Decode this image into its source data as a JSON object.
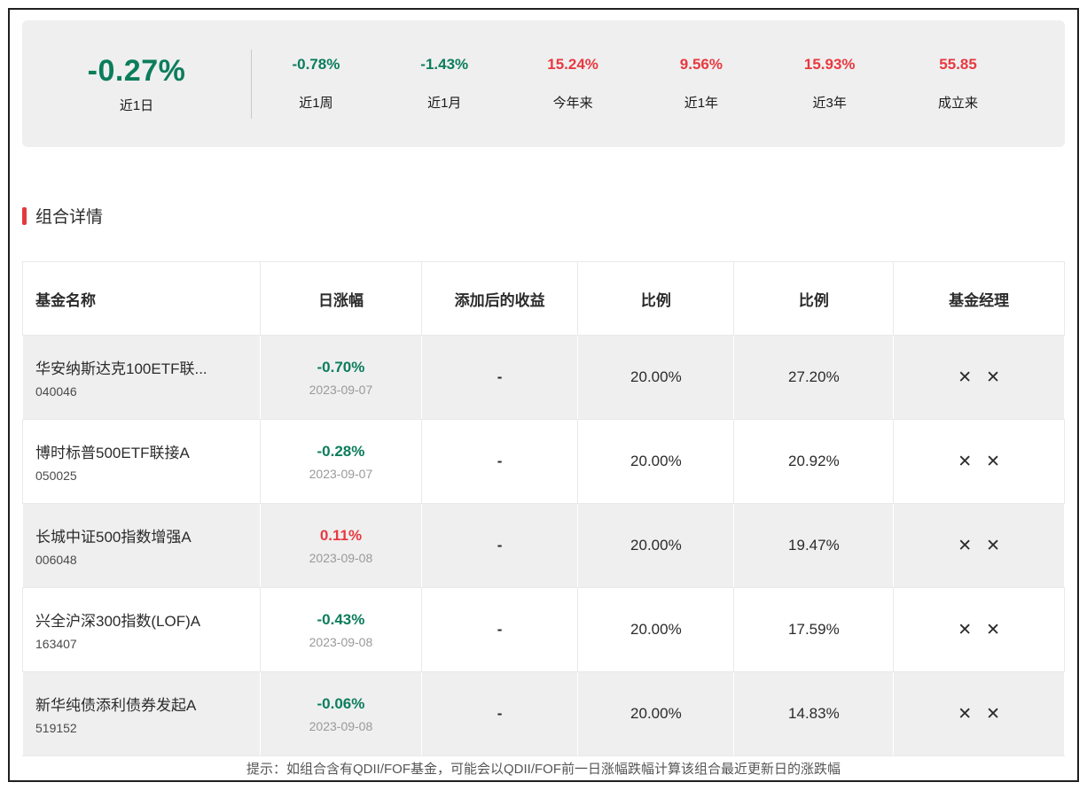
{
  "stats": {
    "main": {
      "value": "-0.27%",
      "label": "近1日"
    },
    "items": [
      {
        "value": "-0.78%",
        "label": "近1周"
      },
      {
        "value": "-1.43%",
        "label": "近1月"
      },
      {
        "value": "15.24%",
        "label": "今年来"
      },
      {
        "value": "9.56%",
        "label": "近1年"
      },
      {
        "value": "15.93%",
        "label": "近3年"
      },
      {
        "value": "55.85",
        "label": "成立来"
      }
    ]
  },
  "section": {
    "title": "组合详情"
  },
  "table": {
    "headers": [
      "基金名称",
      "日涨幅",
      "添加后的收益",
      "比例",
      "比例",
      "基金经理"
    ],
    "rows": [
      {
        "name": "华安纳斯达克100ETF联...",
        "code": "040046",
        "change": "-0.70%",
        "date": "2023-09-07",
        "added_return": "-",
        "ratio1": "20.00%",
        "ratio2": "27.20%"
      },
      {
        "name": "博时标普500ETF联接A",
        "code": "050025",
        "change": "-0.28%",
        "date": "2023-09-07",
        "added_return": "-",
        "ratio1": "20.00%",
        "ratio2": "20.92%"
      },
      {
        "name": "长城中证500指数增强A",
        "code": "006048",
        "change": "0.11%",
        "date": "2023-09-08",
        "added_return": "-",
        "ratio1": "20.00%",
        "ratio2": "19.47%"
      },
      {
        "name": "兴全沪深300指数(LOF)A",
        "code": "163407",
        "change": "-0.43%",
        "date": "2023-09-08",
        "added_return": "-",
        "ratio1": "20.00%",
        "ratio2": "17.59%"
      },
      {
        "name": "新华纯债添利债券发起A",
        "code": "519152",
        "change": "-0.06%",
        "date": "2023-09-08",
        "added_return": "-",
        "ratio1": "20.00%",
        "ratio2": "14.83%"
      }
    ]
  },
  "icons": {
    "manager_x": "✕"
  },
  "note": "提示：如组合含有QDII/FOF基金，可能会以QDII/FOF前一日涨幅跌幅计算该组合最近更新日的涨跌幅",
  "colors": {
    "green": "#0b7d5b",
    "red": "#e8393f",
    "accent_red": "#e4393c",
    "bar_bg": "#efeff0"
  }
}
